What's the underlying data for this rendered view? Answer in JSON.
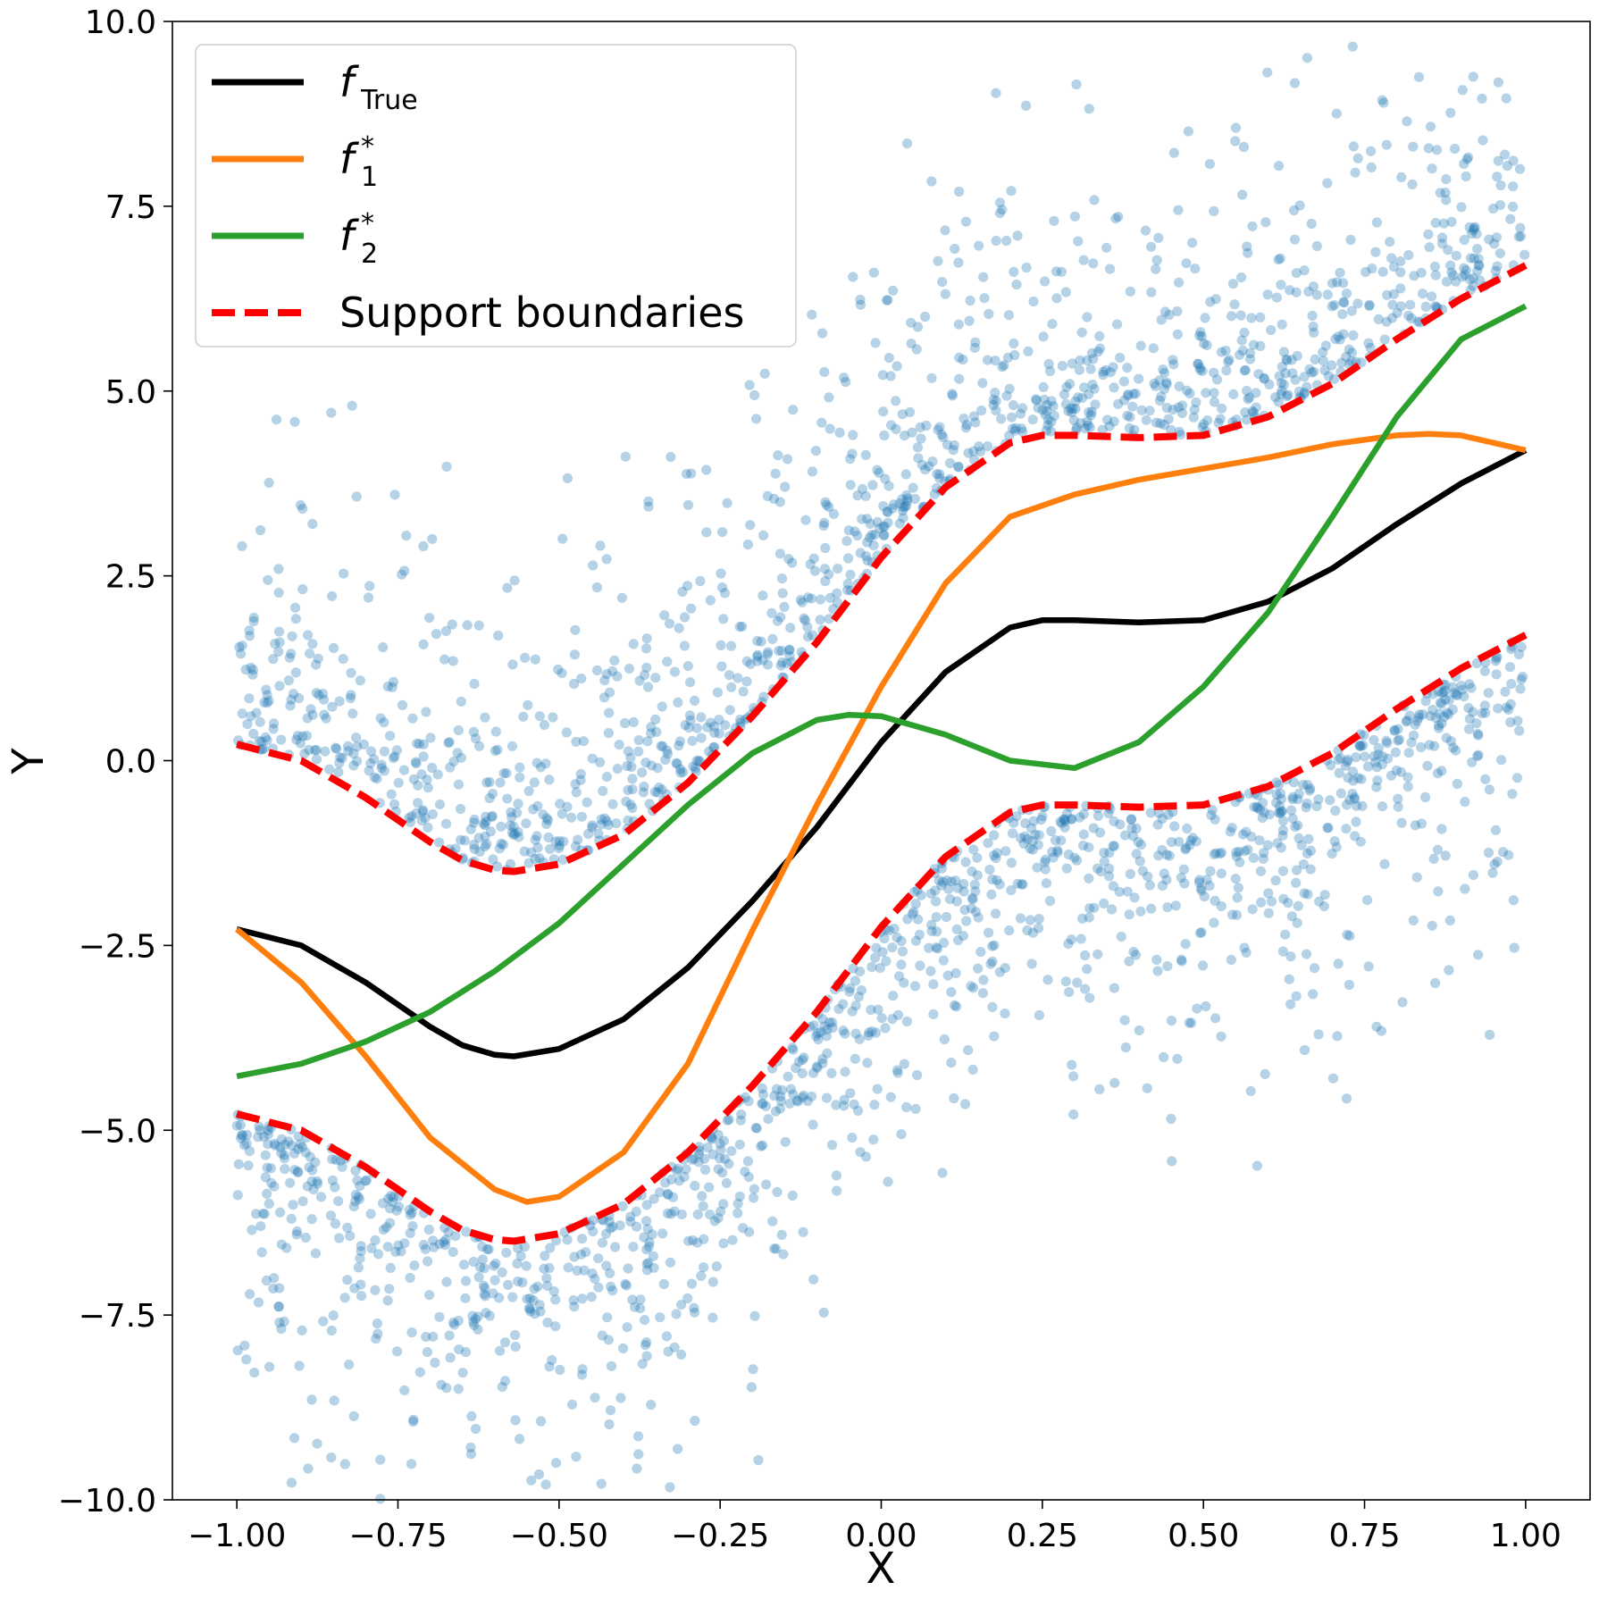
{
  "chart_data": {
    "type": "scatter",
    "xlabel": "X",
    "ylabel": "Y",
    "xlim": [
      -1.1,
      1.1
    ],
    "ylim": [
      -10,
      10
    ],
    "xticks": [
      -1.0,
      -0.75,
      -0.5,
      -0.25,
      0.0,
      0.25,
      0.5,
      0.75,
      1.0
    ],
    "xtick_labels": [
      "−1.00",
      "−0.75",
      "−0.50",
      "−0.25",
      "0.00",
      "0.25",
      "0.50",
      "0.75",
      "1.00"
    ],
    "yticks": [
      -10,
      -7.5,
      -5,
      -2.5,
      0,
      2.5,
      5,
      7.5,
      10
    ],
    "ytick_labels": [
      "−10.0",
      "−7.5",
      "−5.0",
      "−2.5",
      "0.0",
      "2.5",
      "5.0",
      "7.5",
      "10.0"
    ],
    "grid": false,
    "legend_position": "top-left",
    "colors": {
      "scatter": "#1f77b4",
      "f_true": "#000000",
      "f1": "#ff7f0e",
      "f2": "#2ca02c",
      "support": "#ff0000"
    },
    "legend": [
      {
        "label": "f",
        "subscript": "True",
        "superscript": "",
        "color": "#000000",
        "style": "solid"
      },
      {
        "label": "f",
        "subscript": "1",
        "superscript": "*",
        "color": "#ff7f0e",
        "style": "solid"
      },
      {
        "label": "f",
        "subscript": "2",
        "superscript": "*",
        "color": "#2ca02c",
        "style": "solid"
      },
      {
        "label": "Support boundaries",
        "subscript": "",
        "superscript": "",
        "color": "#ff0000",
        "style": "dashed"
      }
    ],
    "series": [
      {
        "key": "f_true",
        "x": [
          -1.0,
          -0.9,
          -0.8,
          -0.7,
          -0.65,
          -0.6,
          -0.57,
          -0.5,
          -0.4,
          -0.3,
          -0.2,
          -0.1,
          0.0,
          0.1,
          0.2,
          0.25,
          0.3,
          0.4,
          0.5,
          0.6,
          0.7,
          0.8,
          0.9,
          1.0
        ],
        "y": [
          -2.28,
          -2.5,
          -3.0,
          -3.6,
          -3.85,
          -3.98,
          -4.0,
          -3.9,
          -3.5,
          -2.8,
          -1.9,
          -0.9,
          0.25,
          1.2,
          1.8,
          1.9,
          1.9,
          1.87,
          1.9,
          2.15,
          2.6,
          3.2,
          3.75,
          4.2
        ]
      },
      {
        "key": "f1",
        "x": [
          -1.0,
          -0.9,
          -0.8,
          -0.7,
          -0.6,
          -0.55,
          -0.5,
          -0.4,
          -0.3,
          -0.2,
          -0.1,
          0.0,
          0.1,
          0.2,
          0.3,
          0.4,
          0.5,
          0.6,
          0.7,
          0.8,
          0.85,
          0.9,
          1.0
        ],
        "y": [
          -2.28,
          -3.0,
          -4.0,
          -5.1,
          -5.8,
          -5.97,
          -5.9,
          -5.3,
          -4.1,
          -2.3,
          -0.6,
          1.0,
          2.4,
          3.3,
          3.6,
          3.8,
          3.95,
          4.1,
          4.28,
          4.4,
          4.42,
          4.4,
          4.2
        ]
      },
      {
        "key": "f2",
        "x": [
          -1.0,
          -0.9,
          -0.8,
          -0.7,
          -0.6,
          -0.5,
          -0.4,
          -0.3,
          -0.2,
          -0.1,
          -0.05,
          0.0,
          0.1,
          0.2,
          0.3,
          0.4,
          0.5,
          0.6,
          0.7,
          0.8,
          0.9,
          1.0
        ],
        "y": [
          -4.27,
          -4.1,
          -3.8,
          -3.4,
          -2.85,
          -2.2,
          -1.4,
          -0.6,
          0.1,
          0.55,
          0.62,
          0.6,
          0.35,
          0.0,
          -0.1,
          0.25,
          1.0,
          2.0,
          3.3,
          4.65,
          5.7,
          6.15
        ]
      },
      {
        "key": "support_upper",
        "x": [
          -1.0,
          -0.9,
          -0.8,
          -0.7,
          -0.65,
          -0.6,
          -0.57,
          -0.5,
          -0.4,
          -0.3,
          -0.2,
          -0.1,
          0.0,
          0.1,
          0.2,
          0.25,
          0.3,
          0.4,
          0.5,
          0.6,
          0.7,
          0.8,
          0.9,
          1.0
        ],
        "y": [
          0.22,
          0.0,
          -0.5,
          -1.1,
          -1.35,
          -1.48,
          -1.5,
          -1.4,
          -1.0,
          -0.3,
          0.6,
          1.6,
          2.75,
          3.7,
          4.3,
          4.4,
          4.4,
          4.37,
          4.4,
          4.65,
          5.1,
          5.7,
          6.25,
          6.7
        ]
      },
      {
        "key": "support_lower",
        "x": [
          -1.0,
          -0.9,
          -0.8,
          -0.7,
          -0.65,
          -0.6,
          -0.57,
          -0.5,
          -0.4,
          -0.3,
          -0.2,
          -0.1,
          0.0,
          0.1,
          0.2,
          0.25,
          0.3,
          0.4,
          0.5,
          0.6,
          0.7,
          0.8,
          0.9,
          1.0
        ],
        "y": [
          -4.78,
          -5.0,
          -5.5,
          -6.1,
          -6.35,
          -6.48,
          -6.5,
          -6.4,
          -6.0,
          -5.3,
          -4.4,
          -3.4,
          -2.25,
          -1.3,
          -0.7,
          -0.6,
          -0.6,
          -0.63,
          -0.6,
          -0.35,
          0.1,
          0.7,
          1.25,
          1.7
        ]
      }
    ]
  }
}
